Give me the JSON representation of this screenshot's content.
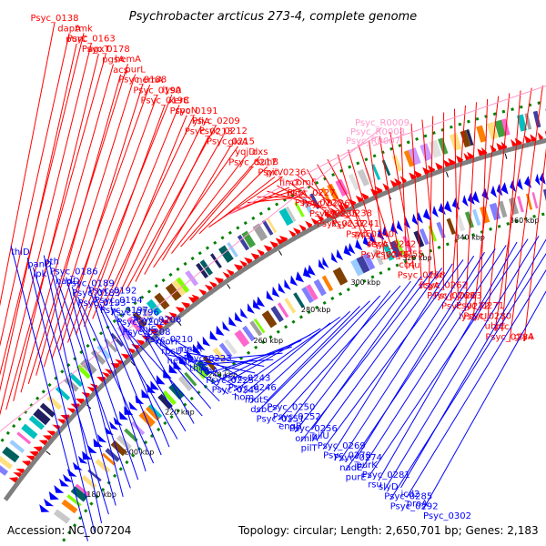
{
  "title": "Psychrobacter arcticus 273-4, complete genome",
  "accession": "Accession: NC_007204",
  "summary": "Topology: circular; Length: 2,650,701 bp; Genes: 2,183",
  "colors": {
    "forward": "#ff0000",
    "reverse": "#0000ff",
    "rna": "#ff99cc",
    "backbone": "#7f7f7f",
    "cog_ring": "#008000"
  },
  "ticks": [
    "180 kbp",
    "200 kbp",
    "220 kbp",
    "240 kbp",
    "260 kbp",
    "280 kbp",
    "300 kbp",
    "320 kbp",
    "340 kbp",
    "360 kbp",
    "380 kbp"
  ],
  "forward_labels": [
    "Psyc_0138",
    "dapA",
    "tmk",
    "purC",
    "Psyc_0163",
    "Psyc_0178",
    "agxT",
    "pgsA",
    "hemA",
    "acs",
    "purL",
    "nemA",
    "Psyc_0188",
    "Psyc_0190",
    "lysA",
    "Psyc_0198",
    "xerC",
    "Psyc_0191",
    "rpoN",
    "yfiA",
    "Psyc_0209",
    "Psyc_0213",
    "Psyc_0212",
    "gloA",
    "Psyc_0215",
    "yqjD",
    "dxs",
    "Psyc_0217",
    "suhB",
    "Psyc_0236",
    "pilV",
    "fimT",
    "comF",
    "pldA",
    "Psyc_0227",
    "Psyc_0226",
    "Psyc_0228",
    "Psyc_0235",
    "Psyc_0238",
    "Psyc_0237",
    "Psyc_0241",
    "Psyc_0240",
    "pilE",
    "secA",
    "Psyc_0242",
    "Psyc_0249",
    "Psyc_0255",
    "rlu",
    "cc4",
    "Psyc_0258",
    "fur",
    "scyA",
    "Psyc_0262",
    "Psyc_0263",
    "Psyc_0268",
    "Psyc_0272",
    "Psyc_0271",
    "lysS/U",
    "Psyc_0280",
    "prc",
    "ubiC",
    "Psyc_0284",
    "glyA"
  ],
  "rna_labels": [
    "Psyc_R0009",
    "Psyc_R0008",
    "Psyc_R0007"
  ],
  "reverse_labels": [
    "thiD",
    "panD",
    "pth",
    "ipk",
    "Psyc_0186",
    "Psyc_0189",
    "nadD",
    "Psyc_0183",
    "Psyc_0192",
    "Psyc_0193",
    "Psyc_0194",
    "Psyc_0196",
    "Psyc_0197",
    "Psyc_0202",
    "Psyc_0206",
    "Psyc_0208",
    "thiS",
    "rpoH",
    "Psyc_0210",
    "rpsU",
    "metR",
    "hemF",
    "Psyc_0223",
    "ribA",
    "thiG",
    "Psyc_0225",
    "Psyc_0243",
    "Psyc_0245",
    "Psyc_0246",
    "mutS",
    "hom",
    "dsbC",
    "Psyc_0250",
    "Psyc_0251",
    "Psyc_0252",
    "Psyc_0256",
    "engB",
    "omlA",
    "pilU",
    "pilT",
    "Psyc_0269",
    "Psyc_0274",
    "Psyc_0278",
    "nadE",
    "purK",
    "purE",
    "Psyc_0281",
    "slyD",
    "rsu",
    "Psyc_0285",
    "icd2",
    "Psyc_0292",
    "proA",
    "Psyc_0302"
  ]
}
